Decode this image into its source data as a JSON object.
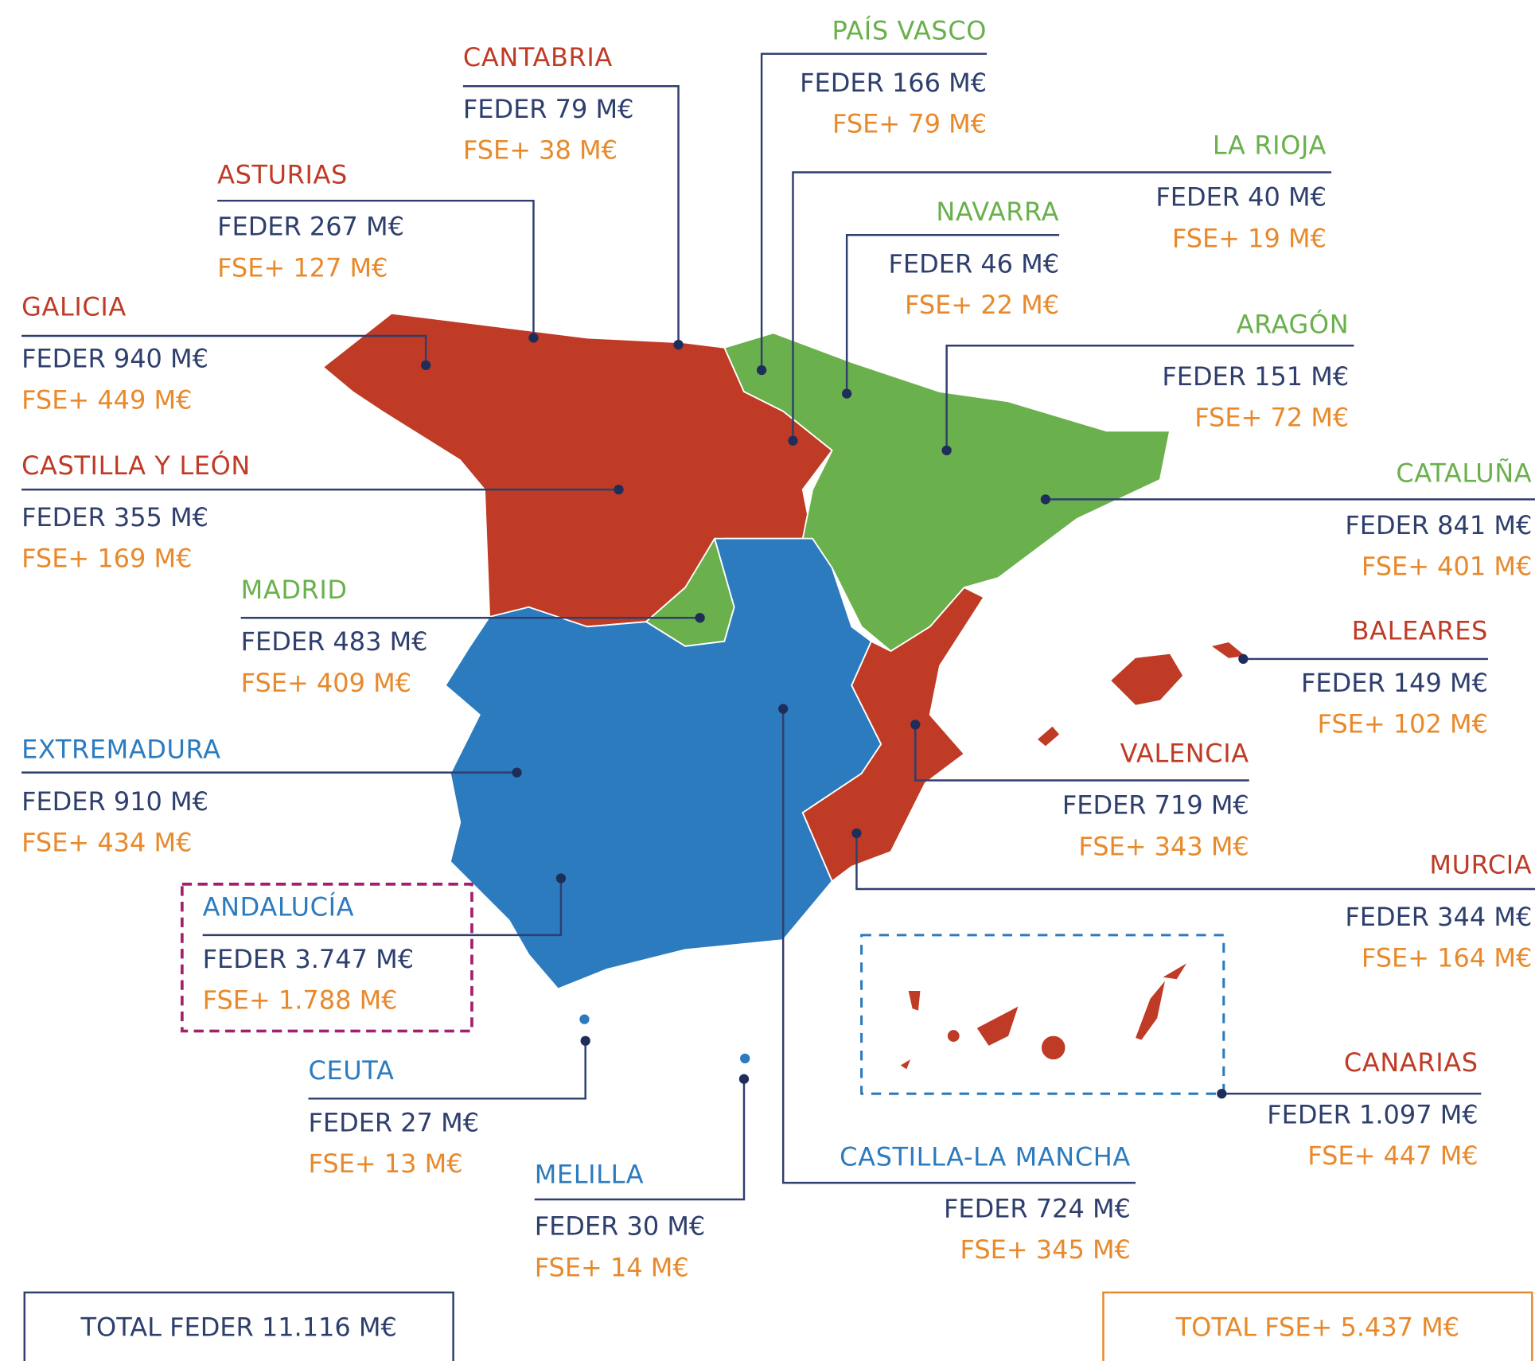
{
  "regions": [
    {
      "name": "GALICIA",
      "feder": "FEDER 940 M€",
      "fse": "FSE+ 449 M€",
      "color": "#bf3b26"
    },
    {
      "name": "ASTURIAS",
      "feder": "FEDER 267 M€",
      "fse": "FSE+ 127 M€",
      "color": "#bf3b26"
    },
    {
      "name": "CANTABRIA",
      "feder": "FEDER 79 M€",
      "fse": "FSE+ 38 M€",
      "color": "#bf3b26"
    },
    {
      "name": "PAÍS VASCO",
      "feder": "FEDER 166 M€",
      "fse": "FSE+ 79 M€",
      "color": "#6ab04c"
    },
    {
      "name": "LA RIOJA",
      "feder": "FEDER 40 M€",
      "fse": "FSE+ 19 M€",
      "color": "#6ab04c"
    },
    {
      "name": "NAVARRA",
      "feder": "FEDER 46 M€",
      "fse": "FSE+ 22 M€",
      "color": "#6ab04c"
    },
    {
      "name": "ARAGÓN",
      "feder": "FEDER 151 M€",
      "fse": "FSE+ 72 M€",
      "color": "#6ab04c"
    },
    {
      "name": "CATALUÑA",
      "feder": "FEDER 841 M€",
      "fse": "FSE+ 401 M€",
      "color": "#6ab04c"
    },
    {
      "name": "CASTILLA Y LEÓN",
      "feder": "FEDER 355 M€",
      "fse": "FSE+ 169 M€",
      "color": "#bf3b26"
    },
    {
      "name": "MADRID",
      "feder": "FEDER 483 M€",
      "fse": "FSE+ 409 M€",
      "color": "#6ab04c"
    },
    {
      "name": "EXTREMADURA",
      "feder": "FEDER 910 M€",
      "fse": "FSE+ 434 M€",
      "color": "#2c7bbf"
    },
    {
      "name": "ANDALUCÍA",
      "feder": "FEDER 3.747 M€",
      "fse": "FSE+ 1.788 M€",
      "color": "#2c7bbf"
    },
    {
      "name": "CEUTA",
      "feder": "FEDER 27 M€",
      "fse": "FSE+ 13 M€",
      "color": "#2c7bbf"
    },
    {
      "name": "MELILLA",
      "feder": "FEDER 30 M€",
      "fse": "FSE+ 14 M€",
      "color": "#2c7bbf"
    },
    {
      "name": "CASTILLA-LA MANCHA",
      "feder": "FEDER 724 M€",
      "fse": "FSE+ 345 M€",
      "color": "#2c7bbf"
    },
    {
      "name": "CANARIAS",
      "feder": "FEDER 1.097 M€",
      "fse": "FSE+ 447 M€",
      "color": "#bf3b26"
    },
    {
      "name": "MURCIA",
      "feder": "FEDER 344 M€",
      "fse": "FSE+ 164 M€",
      "color": "#bf3b26"
    },
    {
      "name": "VALENCIA",
      "feder": "FEDER 719 M€",
      "fse": "FSE+ 343 M€",
      "color": "#bf3b26"
    },
    {
      "name": "BALEARES",
      "feder": "FEDER 149 M€",
      "fse": "FSE+ 102 M€",
      "color": "#bf3b26"
    }
  ],
  "totals": {
    "feder": "TOTAL FEDER 11.116 M€",
    "fse": "TOTAL FSE+ 5.437 M€"
  }
}
